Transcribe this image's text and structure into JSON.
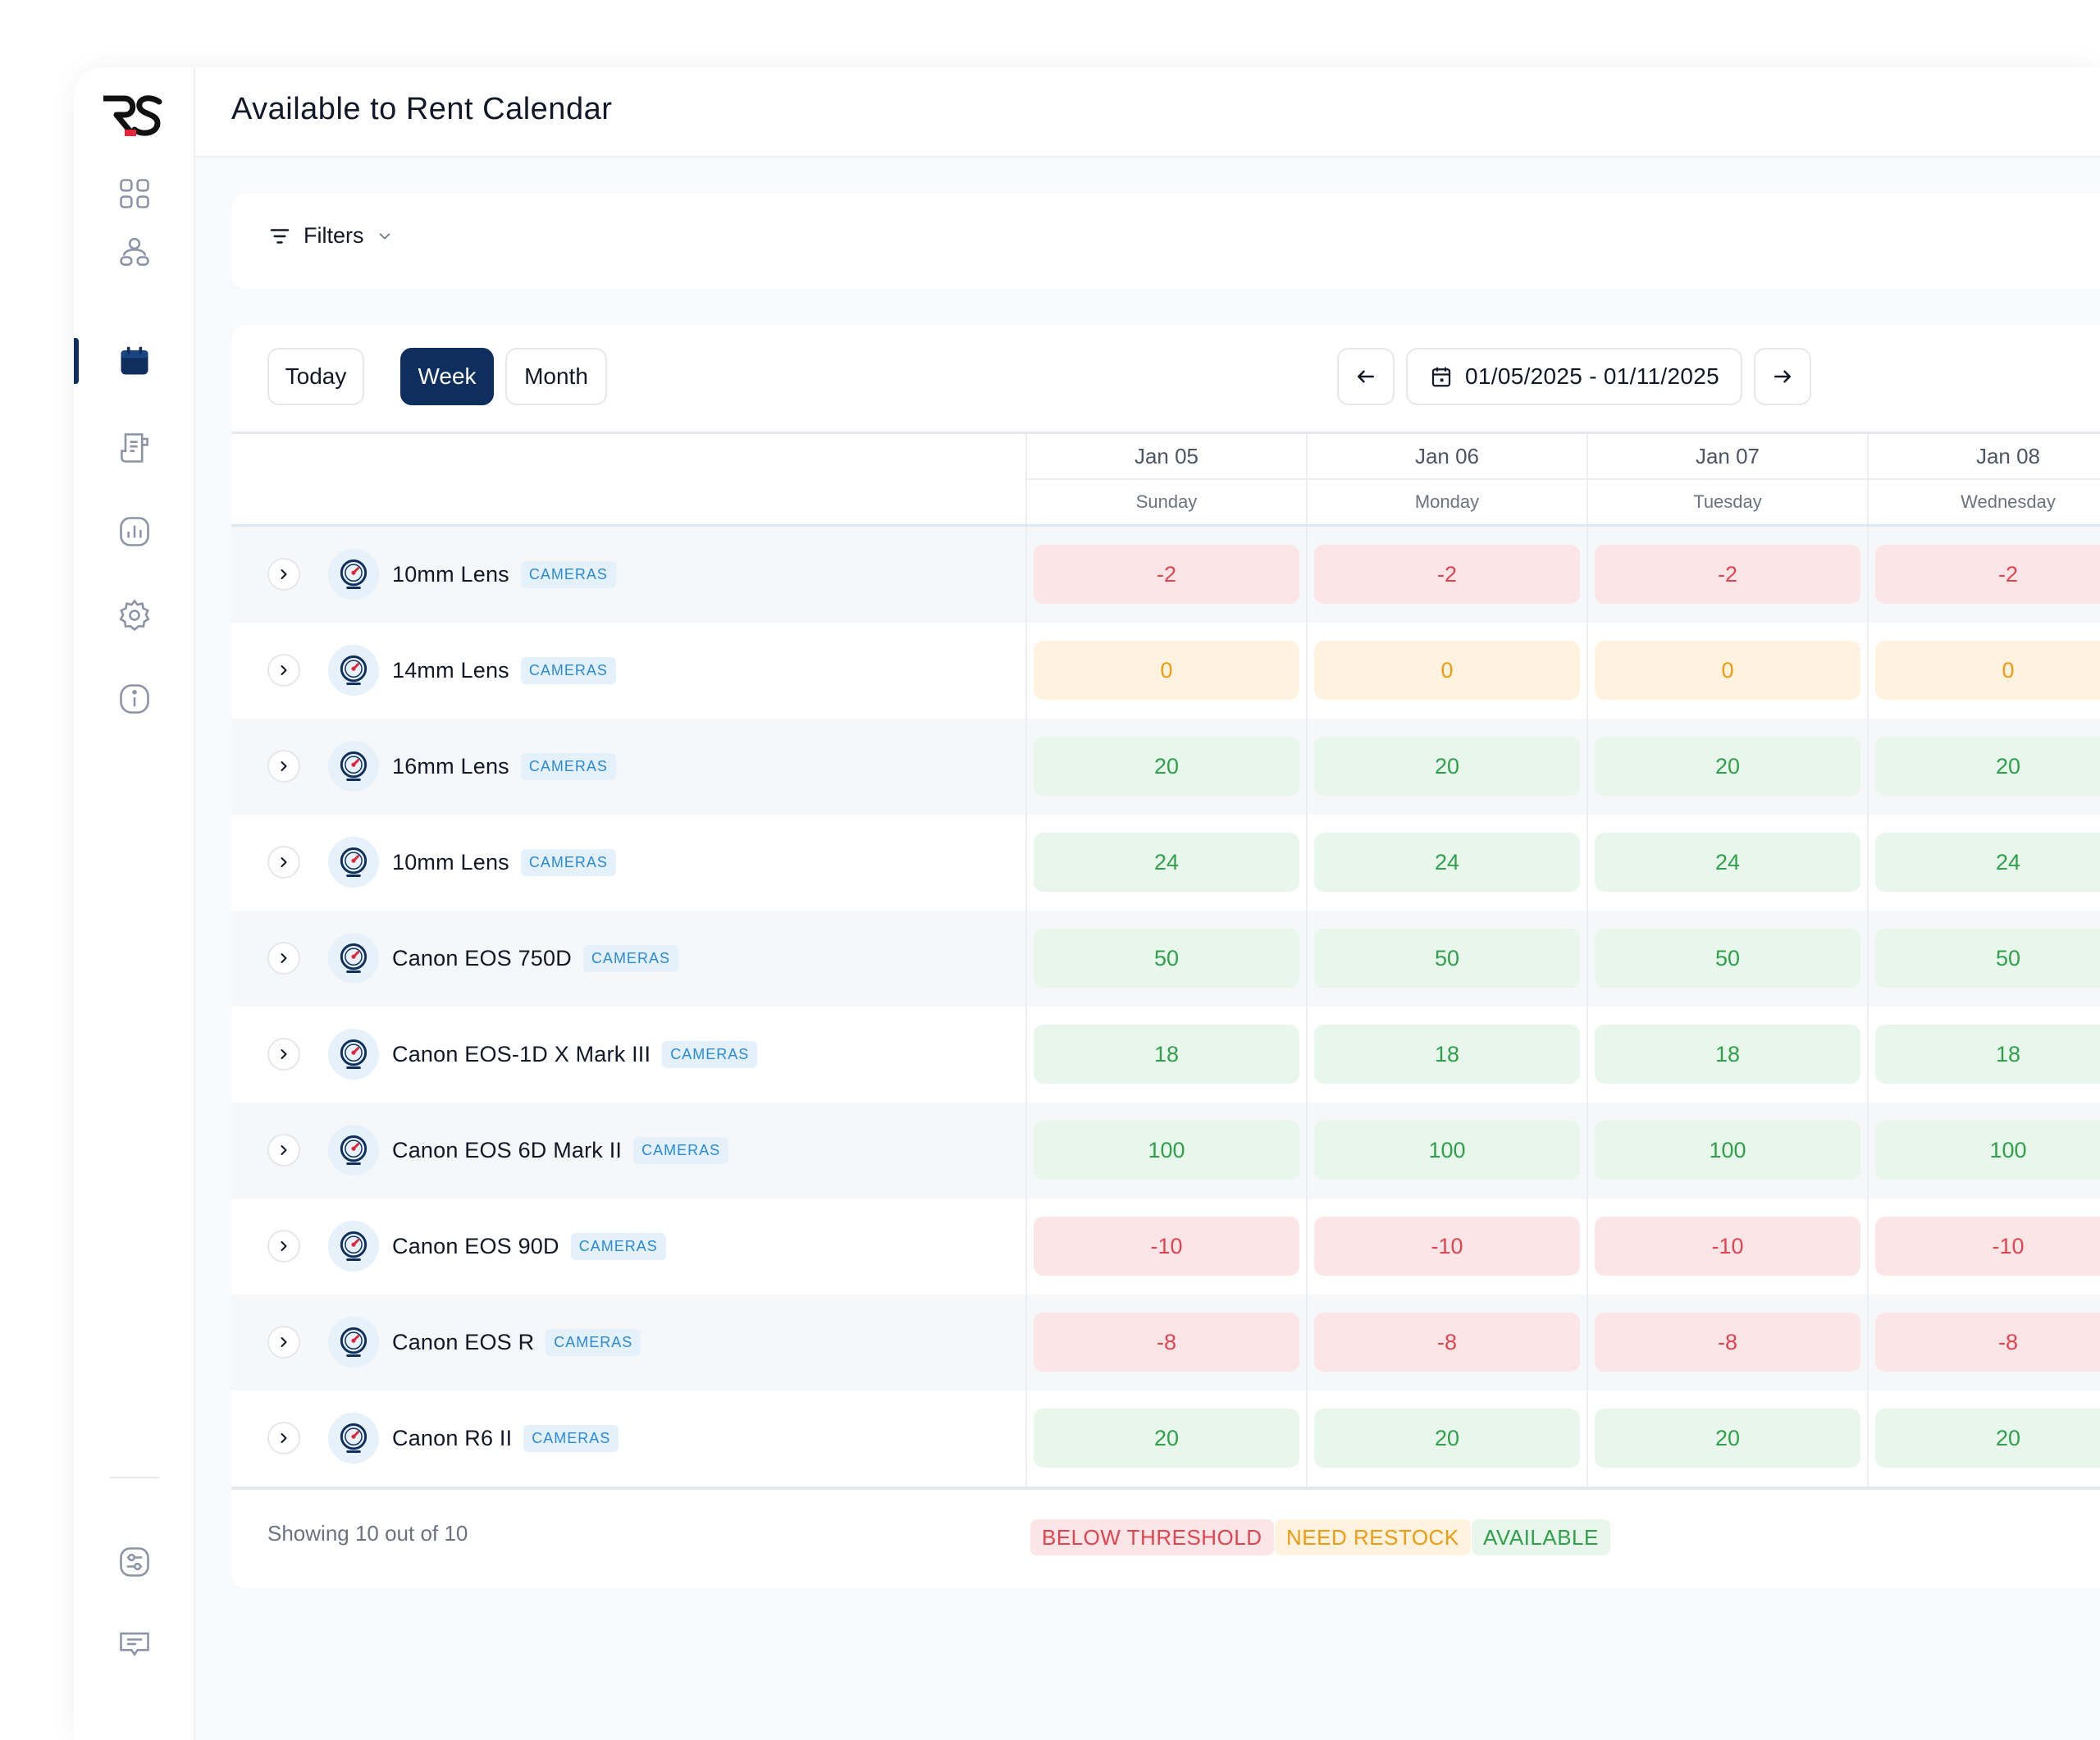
{
  "app": {
    "logo_text": "RS",
    "title": "Available to Rent Calendar"
  },
  "sidebar": {
    "items": [
      {
        "name": "dashboard",
        "icon": "grid-icon",
        "active": false
      },
      {
        "name": "customers",
        "icon": "users-icon",
        "active": false
      },
      {
        "name": "calendar",
        "icon": "calendar-icon",
        "active": true
      },
      {
        "name": "orders",
        "icon": "document-icon",
        "active": false
      },
      {
        "name": "reports",
        "icon": "bar-chart-icon",
        "active": false
      },
      {
        "name": "settings",
        "icon": "gear-icon",
        "active": false
      },
      {
        "name": "info",
        "icon": "info-icon",
        "active": false
      }
    ],
    "bottom_items": [
      {
        "name": "preferences",
        "icon": "sliders-icon"
      },
      {
        "name": "messages",
        "icon": "chat-icon"
      }
    ]
  },
  "filters": {
    "label": "Filters"
  },
  "toolbar": {
    "today_label": "Today",
    "week_label": "Week",
    "month_label": "Month",
    "active_view": "Week",
    "date_range": "01/05/2025 - 01/11/2025",
    "prev_icon": "arrow-left-icon",
    "next_icon": "arrow-right-icon"
  },
  "days": [
    {
      "date": "Jan 05",
      "weekday": "Sunday"
    },
    {
      "date": "Jan 06",
      "weekday": "Monday"
    },
    {
      "date": "Jan 07",
      "weekday": "Tuesday"
    },
    {
      "date": "Jan 08",
      "weekday": "Wednesday"
    }
  ],
  "rows": [
    {
      "name": "10mm Lens",
      "tag": "CAMERAS",
      "status": "below",
      "values": [
        "-2",
        "-2",
        "-2",
        "-2"
      ]
    },
    {
      "name": "14mm Lens",
      "tag": "CAMERAS",
      "status": "restock",
      "values": [
        "0",
        "0",
        "0",
        "0"
      ]
    },
    {
      "name": "16mm Lens",
      "tag": "CAMERAS",
      "status": "available",
      "values": [
        "20",
        "20",
        "20",
        "20"
      ]
    },
    {
      "name": "10mm Lens",
      "tag": "CAMERAS",
      "status": "available",
      "values": [
        "24",
        "24",
        "24",
        "24"
      ]
    },
    {
      "name": "Canon EOS 750D",
      "tag": "CAMERAS",
      "status": "available",
      "values": [
        "50",
        "50",
        "50",
        "50"
      ]
    },
    {
      "name": "Canon EOS-1D X Mark III",
      "tag": "CAMERAS",
      "status": "available",
      "values": [
        "18",
        "18",
        "18",
        "18"
      ]
    },
    {
      "name": "Canon EOS 6D Mark II",
      "tag": "CAMERAS",
      "status": "available",
      "values": [
        "100",
        "100",
        "100",
        "100"
      ]
    },
    {
      "name": "Canon EOS 90D",
      "tag": "CAMERAS",
      "status": "below",
      "values": [
        "-10",
        "-10",
        "-10",
        "-10"
      ]
    },
    {
      "name": "Canon EOS R",
      "tag": "CAMERAS",
      "status": "below",
      "values": [
        "-8",
        "-8",
        "-8",
        "-8"
      ]
    },
    {
      "name": "Canon R6 II",
      "tag": "CAMERAS",
      "status": "available",
      "values": [
        "20",
        "20",
        "20",
        "20"
      ]
    }
  ],
  "footer": {
    "showing_text": "Showing 10 out of 10",
    "legend": [
      {
        "key": "below",
        "label": "BELOW THRESHOLD"
      },
      {
        "key": "restock",
        "label": "NEED RESTOCK"
      },
      {
        "key": "available",
        "label": "AVAILABLE"
      }
    ]
  },
  "colors": {
    "brand_navy": "#0e2f5e",
    "below": "#e0444f",
    "restock": "#f09a0f",
    "available": "#2fa04b",
    "tag": "#2a8ad6"
  }
}
